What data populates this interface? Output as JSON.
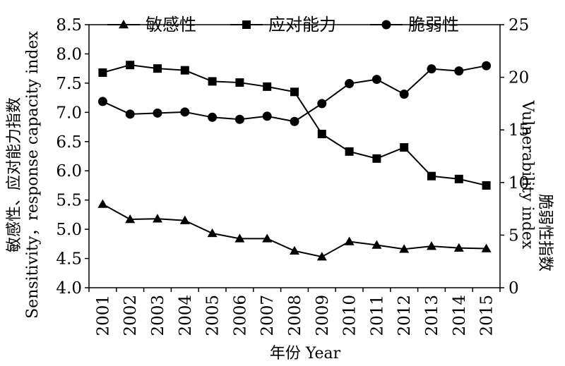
{
  "chart_data": {
    "type": "line",
    "categories": [
      "2001",
      "2002",
      "2003",
      "2004",
      "2005",
      "2006",
      "2007",
      "2008",
      "2009",
      "2010",
      "2011",
      "2012",
      "2013",
      "2014",
      "2015"
    ],
    "series": [
      {
        "name": "敏感性",
        "axis": "left",
        "marker": "triangle",
        "values": [
          5.43,
          5.17,
          5.18,
          5.15,
          4.93,
          4.84,
          4.84,
          4.63,
          4.53,
          4.79,
          4.73,
          4.66,
          4.71,
          4.68,
          4.67
        ]
      },
      {
        "name": "应对能力",
        "axis": "left",
        "marker": "square",
        "values": [
          7.68,
          7.81,
          7.75,
          7.72,
          7.53,
          7.51,
          7.44,
          7.35,
          6.63,
          6.33,
          6.21,
          6.4,
          5.91,
          5.86,
          5.75
        ]
      },
      {
        "name": "脆弱性",
        "axis": "right",
        "marker": "circle",
        "values": [
          17.7,
          16.5,
          16.6,
          16.7,
          16.2,
          16.0,
          16.3,
          15.8,
          17.5,
          19.4,
          19.8,
          18.4,
          20.8,
          20.6,
          21.1
        ]
      }
    ],
    "xlabel": "年份 Year",
    "ylabel_left_line1": "敏感性、应对能力指数",
    "ylabel_left_line2": "Sensitivity，response capacity index",
    "ylabel_right_line1": "脆弱性指数",
    "ylabel_right_line2": "Vulnerability index",
    "ylim_left": [
      4.0,
      8.5
    ],
    "yticks_left": [
      "4.0",
      "4.5",
      "5.0",
      "5.5",
      "6.0",
      "6.5",
      "7.0",
      "7.5",
      "8.0",
      "8.5"
    ],
    "ylim_right": [
      0,
      25
    ],
    "yticks_right": [
      "0",
      "5",
      "10",
      "15",
      "20",
      "25"
    ],
    "grid": false,
    "legend_position": "top"
  }
}
